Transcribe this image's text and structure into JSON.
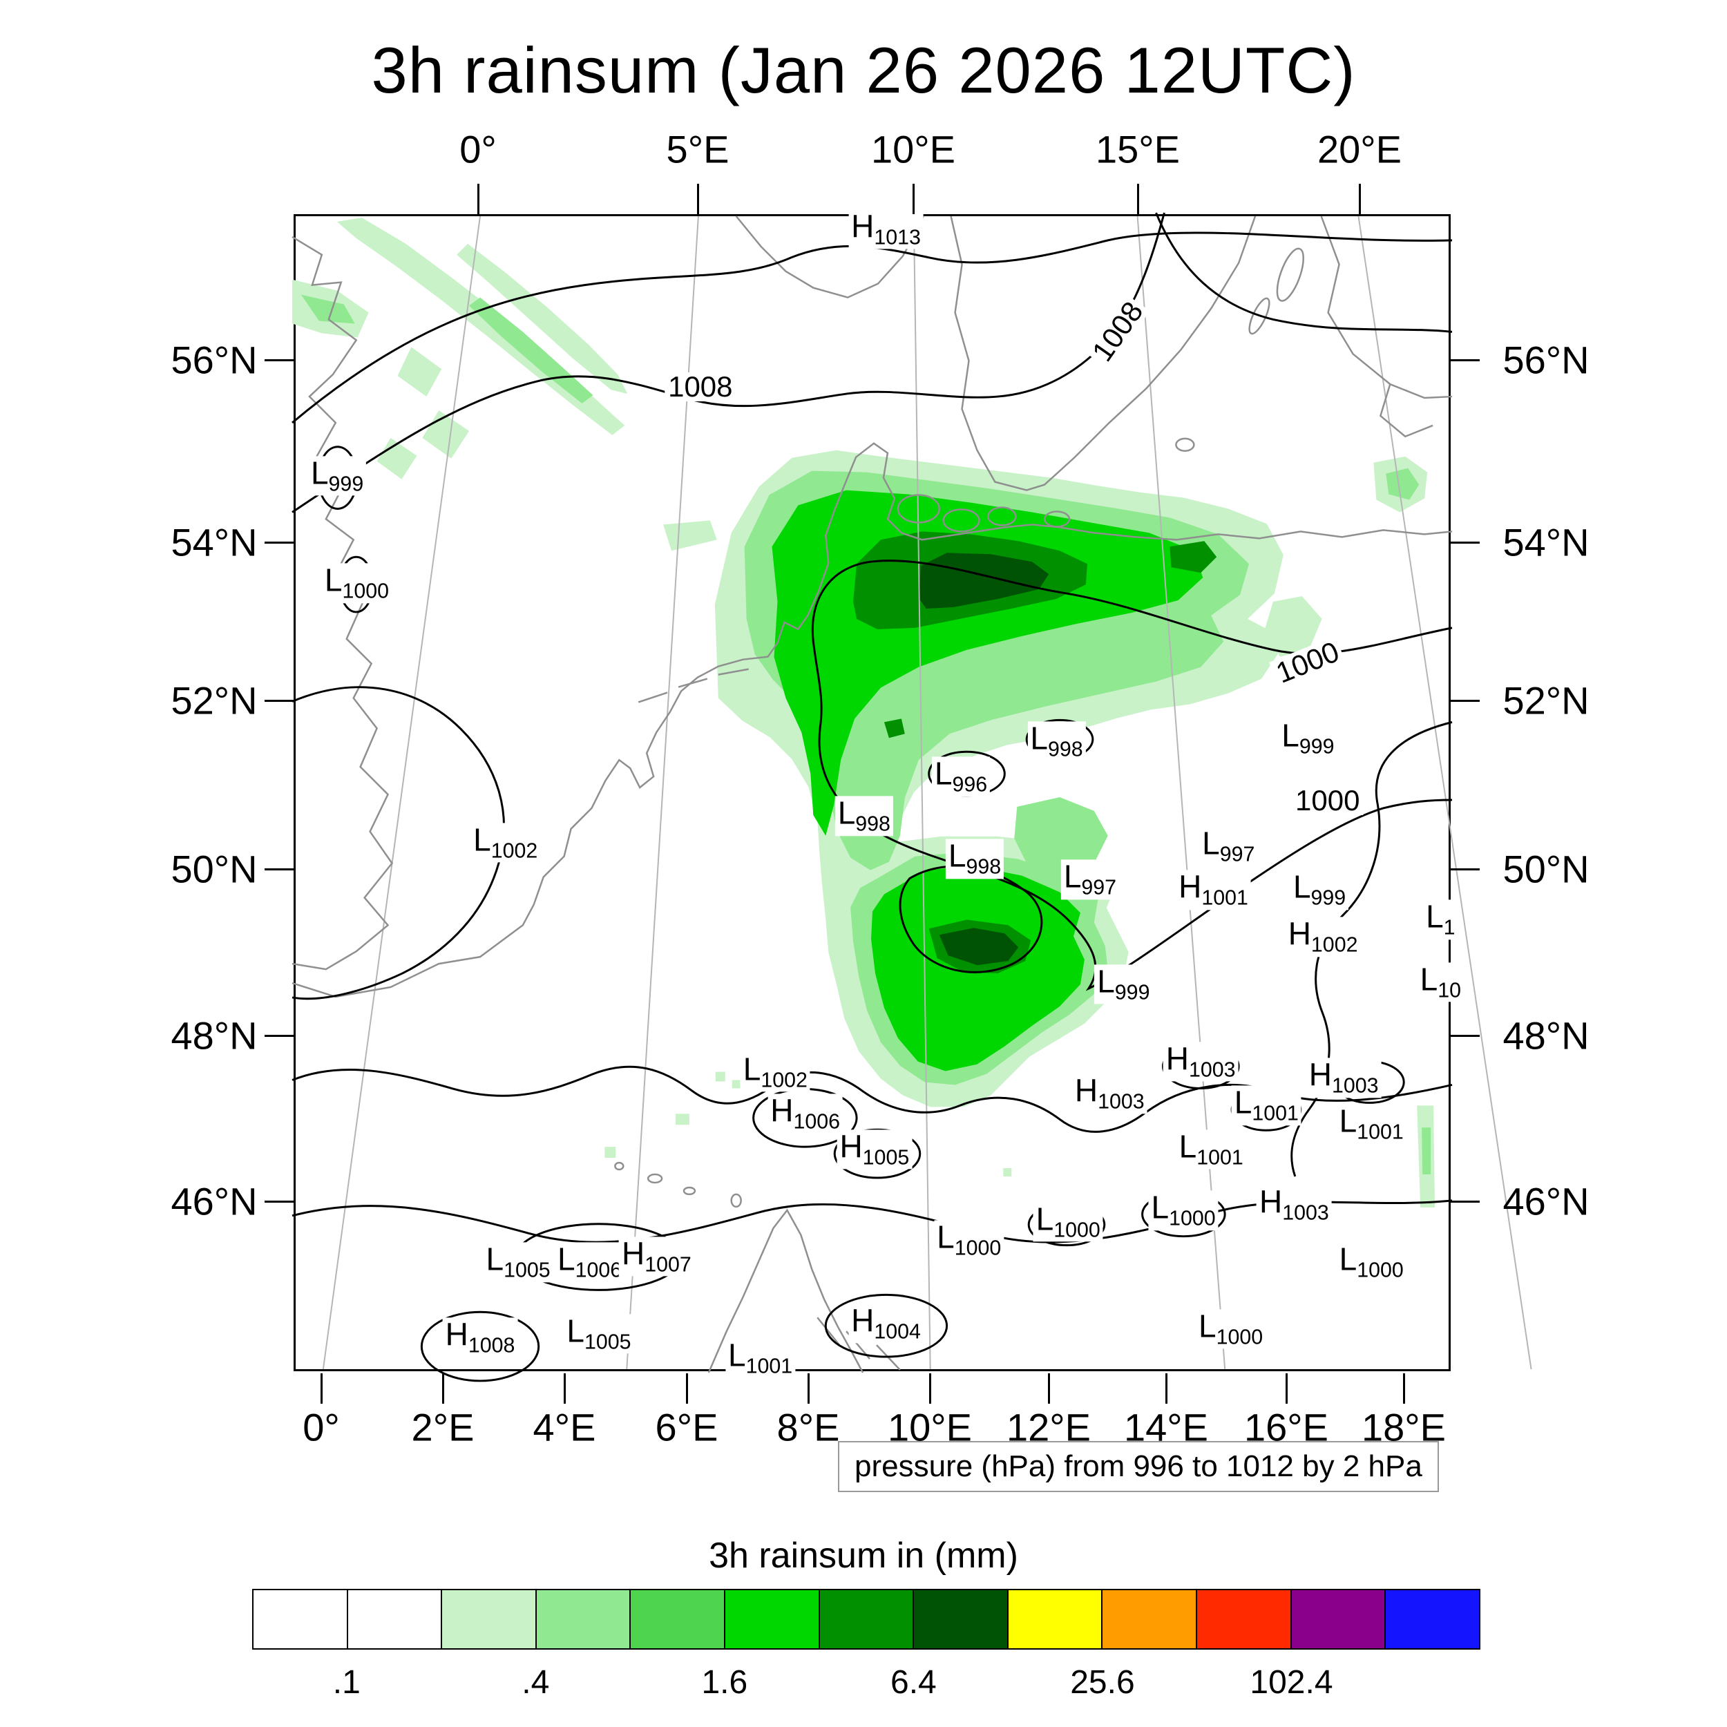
{
  "title": "3h rainsum (Jan 26 2026 12UTC)",
  "axes": {
    "top_labels": [
      "0°",
      "5°E",
      "10°E",
      "15°E",
      "20°E"
    ],
    "bottom_labels": [
      "0°",
      "2°E",
      "4°E",
      "6°E",
      "8°E",
      "10°E",
      "12°E",
      "14°E",
      "16°E",
      "18°E"
    ],
    "left_labels": [
      "56°N",
      "54°N",
      "52°N",
      "50°N",
      "48°N",
      "46°N"
    ],
    "right_labels": [
      "56°N",
      "54°N",
      "52°N",
      "50°N",
      "48°N",
      "46°N"
    ]
  },
  "caption": "pressure (hPa) from 996 to 1012 by 2 hPa",
  "colorbar": {
    "title": "3h rainsum in (mm)",
    "tick_labels": [
      ".1",
      ".4",
      "1.6",
      "6.4",
      "25.6",
      "102.4"
    ],
    "colors": [
      "#ffffff",
      "#ffffff",
      "#c9f2c9",
      "#90e890",
      "#4fd44f",
      "#00d600",
      "#009000",
      "#005305",
      "#ffff00",
      "#ff9d00",
      "#ff2a00",
      "#8b008b",
      "#1414ff"
    ]
  },
  "chart_data": {
    "type": "heatmap",
    "title": "3h rainsum (Jan 26 2026 12UTC)",
    "field": "3 hour accumulated rainfall (mm), filled shading over central Europe",
    "overlay": "sea level pressure contours (hPa)",
    "contour_levels_hpa": [
      996,
      998,
      1000,
      1002,
      1004,
      1006,
      1008,
      1010,
      1012
    ],
    "rain_level_boundaries_mm": [
      0.1,
      0.2,
      0.4,
      0.8,
      1.6,
      3.2,
      6.4,
      12.8,
      25.6,
      51.2,
      102.4,
      204.8
    ],
    "lon_ticks_bottom": [
      "0°",
      "2°E",
      "4°E",
      "6°E",
      "8°E",
      "10°E",
      "12°E",
      "14°E",
      "16°E",
      "18°E"
    ],
    "lon_ticks_top": [
      "0°",
      "5°E",
      "10°E",
      "15°E",
      "20°E"
    ],
    "lat_ticks": [
      "56°N",
      "54°N",
      "52°N",
      "50°N",
      "48°N",
      "46°N"
    ],
    "legend_position": "bottom",
    "pressure_centers": [
      {
        "t": "H",
        "v": "1013",
        "x": 51.2,
        "y": 1.3
      },
      {
        "t": "L",
        "v": "999",
        "x": 3.6,
        "y": 22.7
      },
      {
        "t": "L",
        "v": "1000",
        "x": 5.3,
        "y": 32.0
      },
      {
        "t": "L",
        "v": "998",
        "x": 66.0,
        "y": 45.7
      },
      {
        "t": "L",
        "v": "996",
        "x": 57.7,
        "y": 48.8
      },
      {
        "t": "L",
        "v": "999",
        "x": 87.8,
        "y": 45.5
      },
      {
        "t": "L",
        "v": "998",
        "x": 49.3,
        "y": 52.2
      },
      {
        "t": "L",
        "v": "1002",
        "x": 18.2,
        "y": 54.5
      },
      {
        "t": "L",
        "v": "998",
        "x": 58.9,
        "y": 55.9
      },
      {
        "t": "L",
        "v": "997",
        "x": 80.9,
        "y": 54.8
      },
      {
        "t": "L",
        "v": "997",
        "x": 68.9,
        "y": 57.7
      },
      {
        "t": "H",
        "v": "1001",
        "x": 79.6,
        "y": 58.6
      },
      {
        "t": "L",
        "v": "999",
        "x": 88.8,
        "y": 58.6
      },
      {
        "t": "H",
        "v": "1002",
        "x": 89.1,
        "y": 62.7
      },
      {
        "t": "L",
        "v": "1",
        "x": 99.3,
        "y": 61.2
      },
      {
        "t": "L",
        "v": "10",
        "x": 99.3,
        "y": 66.6
      },
      {
        "t": "L",
        "v": "999",
        "x": 71.8,
        "y": 66.8
      },
      {
        "t": "H",
        "v": "1003",
        "x": 78.5,
        "y": 73.5
      },
      {
        "t": "L",
        "v": "1002",
        "x": 41.6,
        "y": 74.4
      },
      {
        "t": "H",
        "v": "1003",
        "x": 70.6,
        "y": 76.3
      },
      {
        "t": "H",
        "v": "1003",
        "x": 90.9,
        "y": 74.9
      },
      {
        "t": "H",
        "v": "1006",
        "x": 44.2,
        "y": 78.0
      },
      {
        "t": "L",
        "v": "1001",
        "x": 84.2,
        "y": 77.3
      },
      {
        "t": "H",
        "v": "1005",
        "x": 50.2,
        "y": 81.1
      },
      {
        "t": "L",
        "v": "1001",
        "x": 93.3,
        "y": 78.9
      },
      {
        "t": "L",
        "v": "1001",
        "x": 79.4,
        "y": 81.1
      },
      {
        "t": "L",
        "v": "1000",
        "x": 77.0,
        "y": 86.4
      },
      {
        "t": "H",
        "v": "1003",
        "x": 86.6,
        "y": 85.9
      },
      {
        "t": "L",
        "v": "1000",
        "x": 67.0,
        "y": 87.4
      },
      {
        "t": "L",
        "v": "1000",
        "x": 58.4,
        "y": 89.0
      },
      {
        "t": "L",
        "v": "1005",
        "x": 19.3,
        "y": 90.9
      },
      {
        "t": "L",
        "v": "1006",
        "x": 25.5,
        "y": 90.9
      },
      {
        "t": "H",
        "v": "1007",
        "x": 31.3,
        "y": 90.4
      },
      {
        "t": "L",
        "v": "1000",
        "x": 93.3,
        "y": 90.9
      },
      {
        "t": "H",
        "v": "1008",
        "x": 16.0,
        "y": 97.4
      },
      {
        "t": "L",
        "v": "1005",
        "x": 26.3,
        "y": 97.1
      },
      {
        "t": "H",
        "v": "1004",
        "x": 51.2,
        "y": 96.2
      },
      {
        "t": "L",
        "v": "1000",
        "x": 81.1,
        "y": 96.7
      },
      {
        "t": "L",
        "v": "1001",
        "x": 40.3,
        "y": 99.2
      }
    ],
    "contour_line_labels": [
      {
        "text": "1008",
        "x": 35.1,
        "y": 14.8,
        "rot": 0
      },
      {
        "text": "1008",
        "x": 71.3,
        "y": 10.0,
        "rot": -55
      },
      {
        "text": "1000",
        "x": 87.8,
        "y": 38.7,
        "rot": -22
      },
      {
        "text": "1000",
        "x": 89.5,
        "y": 50.7,
        "rot": 0
      }
    ]
  }
}
